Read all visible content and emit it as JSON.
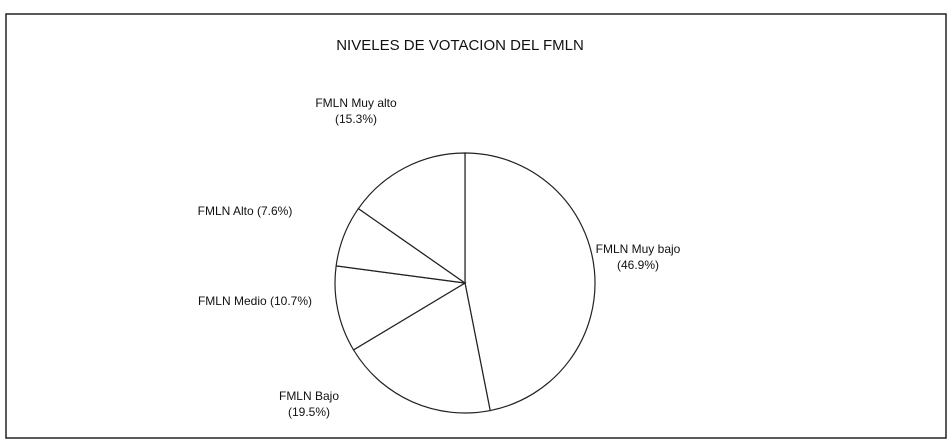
{
  "chart_data": {
    "type": "pie",
    "title": "NIVELES DE VOTACION DEL FMLN",
    "categories": [
      "FMLN Muy bajo",
      "FMLN Bajo",
      "FMLN Medio",
      "FMLN Alto",
      "FMLN Muy alto"
    ],
    "values": [
      46.9,
      19.5,
      10.7,
      7.6,
      15.3
    ],
    "value_labels": [
      "(46.9%)",
      "(19.5%)",
      "(10.7%)",
      "(7.6%)",
      "(15.3%)"
    ],
    "color": "#ffffff"
  }
}
